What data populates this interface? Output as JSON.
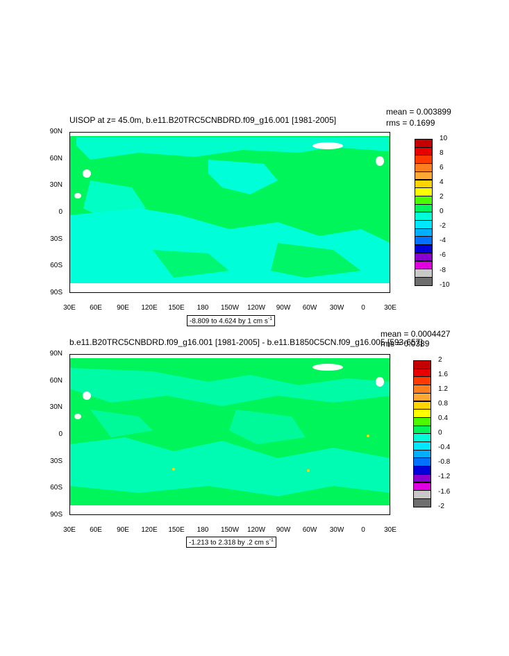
{
  "panels": [
    {
      "title": "UISOP at z=  45.0m, b.e11.B20TRC5CNBDRD.f09_g16.001 [1981-2005]",
      "stat_mean": "mean = 0.003899",
      "stat_rms": "rms = 0.1699",
      "info": "-8.809 to 4.624 by 1 cm s",
      "info_sup": "-1",
      "colorbar_labels": [
        "10",
        "8",
        "6",
        "4",
        "2",
        "0",
        "-2",
        "-4",
        "-6",
        "-8",
        "-10"
      ]
    },
    {
      "title": "b.e11.B20TRC5CNBDRD.f09_g16.001 [1981-2005] - b.e11.B1850C5CN.f09_g16.005 [593-657]",
      "stat_mean": "mean = 0.0004427",
      "stat_rms": "rms = 0.0389",
      "info": "-1.213 to 2.318 by .2 cm s",
      "info_sup": "-1",
      "colorbar_labels": [
        "2",
        "1.6",
        "1.2",
        "0.8",
        "0.4",
        "0",
        "-0.4",
        "-0.8",
        "-1.2",
        "-1.6",
        "-2"
      ]
    }
  ],
  "lat_labels": [
    "90N",
    "60N",
    "30N",
    "0",
    "30S",
    "60S",
    "90S"
  ],
  "lon_labels": [
    "30E",
    "60E",
    "90E",
    "120E",
    "150E",
    "180",
    "150W",
    "120W",
    "90W",
    "60W",
    "30W",
    "0",
    "30E"
  ],
  "colorbar_colors": [
    "#c40000",
    "#e80000",
    "#ff3a00",
    "#ff7f1e",
    "#ffa833",
    "#ffd400",
    "#ffff00",
    "#4cfa00",
    "#00f55a",
    "#00ffd8",
    "#00e8ff",
    "#00b0ff",
    "#0072ff",
    "#0000d8",
    "#8b00d0",
    "#e000e0",
    "#c8c8c8",
    "#6e6e6e"
  ],
  "fill_colors": {
    "green": "#00f55a",
    "cyan": "#00ffd8",
    "land": "#ffffff"
  }
}
